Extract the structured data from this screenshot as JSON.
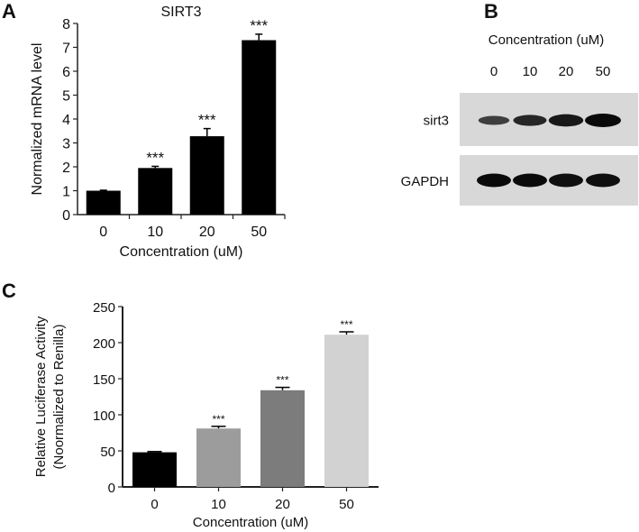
{
  "chart_data": [
    {
      "panel": "A",
      "type": "bar",
      "title": "SIRT3",
      "xlabel": "Concentration (uM)",
      "ylabel": "Normalized mRNA level",
      "categories": [
        "0",
        "10",
        "20",
        "50"
      ],
      "values": [
        1.0,
        1.95,
        3.28,
        7.3
      ],
      "errors": [
        0.02,
        0.07,
        0.32,
        0.25
      ],
      "significance": [
        "",
        "***",
        "***",
        "***"
      ],
      "ylim": [
        0,
        8
      ],
      "yticks": [
        "0",
        "1",
        "2",
        "3",
        "4",
        "5",
        "6",
        "7",
        "8"
      ],
      "bar_colors": [
        "#000000",
        "#000000",
        "#000000",
        "#000000"
      ],
      "grid": false
    },
    {
      "panel": "C",
      "type": "bar",
      "title": "",
      "xlabel": "Concentration (uM)",
      "ylabel": "Relative Luciferase Activity",
      "ylabel2": "(Noormalized to Renilla)",
      "categories": [
        "0",
        "10",
        "20",
        "50"
      ],
      "values": [
        48,
        81,
        134,
        211
      ],
      "errors": [
        1,
        3,
        4,
        4
      ],
      "significance": [
        "",
        "***",
        "***",
        "***"
      ],
      "ylim": [
        0,
        250
      ],
      "yticks": [
        "0",
        "50",
        "100",
        "150",
        "200",
        "250"
      ],
      "bar_colors": [
        "#000000",
        "#9c9c9c",
        "#7c7c7c",
        "#d2d2d2"
      ],
      "grid": false
    }
  ],
  "blot": {
    "panel": "B",
    "header": "Concentration (uM)",
    "lanes": [
      "0",
      "10",
      "20",
      "50"
    ],
    "rows": [
      {
        "label": "sirt3",
        "band_intensity": [
          0.45,
          0.7,
          0.85,
          1.0
        ]
      },
      {
        "label": "GAPDH",
        "band_intensity": [
          1.0,
          1.0,
          0.95,
          0.95
        ]
      }
    ]
  }
}
